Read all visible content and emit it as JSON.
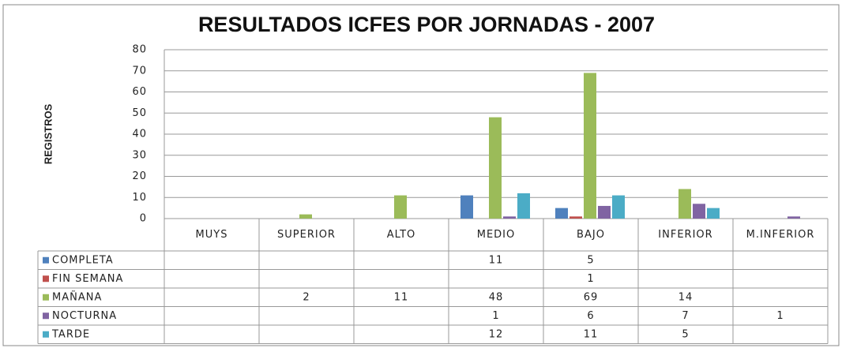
{
  "chart_data": {
    "type": "bar",
    "title": "RESULTADOS ICFES POR JORNADAS - 2007",
    "y_label": "REGISTROS",
    "categories": [
      "MUYS",
      "SUPERIOR",
      "ALTO",
      "MEDIO",
      "BAJO",
      "INFERIOR",
      "M.INFERIOR"
    ],
    "series": [
      {
        "name": "COMPLETA",
        "color": "#4f81bd",
        "values": [
          null,
          null,
          null,
          11,
          5,
          null,
          null
        ]
      },
      {
        "name": "FIN SEMANA",
        "color": "#c0504d",
        "values": [
          null,
          null,
          null,
          null,
          1,
          null,
          null
        ]
      },
      {
        "name": "MAÑANA",
        "color": "#9bbb59",
        "values": [
          null,
          2,
          11,
          48,
          69,
          14,
          null
        ]
      },
      {
        "name": "NOCTURNA",
        "color": "#8064a2",
        "values": [
          null,
          null,
          null,
          1,
          6,
          7,
          1
        ]
      },
      {
        "name": "TARDE",
        "color": "#4bacc6",
        "values": [
          null,
          null,
          null,
          12,
          11,
          5,
          null
        ]
      }
    ],
    "ylim": [
      0,
      80
    ],
    "yticks": [
      0,
      10,
      20,
      30,
      40,
      50,
      60,
      70,
      80
    ],
    "grid": true
  }
}
